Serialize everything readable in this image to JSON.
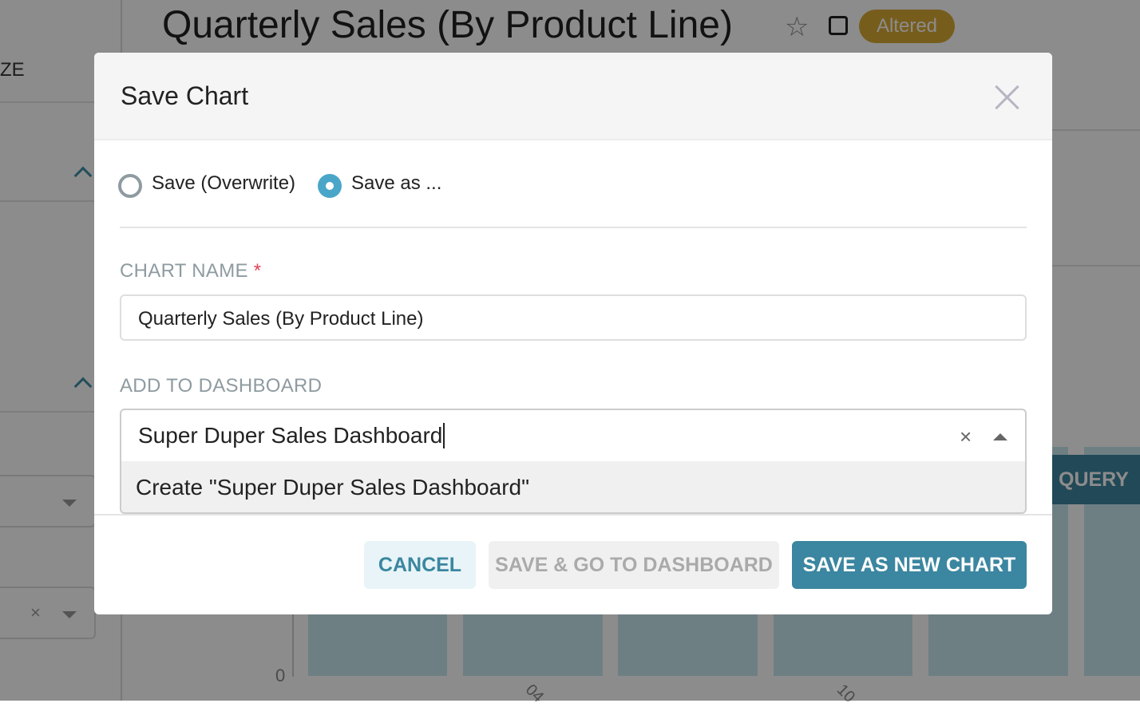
{
  "background": {
    "chart_title": "Quarterly Sales (By Product Line)",
    "status_badge": "Altered",
    "sidebar_partial_label": "ZE",
    "run_query_partial": "QUERY",
    "y_axis_tick": "0",
    "x_axis_ticks": [
      "04",
      "10"
    ],
    "colors": {
      "badge": "#d9a933",
      "run_query": "#3d869f",
      "bars": "#c8e8f0"
    }
  },
  "modal": {
    "title": "Save Chart",
    "radio_options": [
      {
        "label": "Save (Overwrite)",
        "selected": false
      },
      {
        "label": "Save as ...",
        "selected": true
      }
    ],
    "chart_name": {
      "label": "CHART NAME",
      "required_mark": "*",
      "value": "Quarterly Sales (By Product Line)"
    },
    "dashboard": {
      "label": "ADD TO DASHBOARD",
      "value": "Super Duper Sales Dashboard",
      "option": "Create \"Super Duper Sales Dashboard\""
    },
    "buttons": {
      "cancel": "CANCEL",
      "save_go": "SAVE & GO TO DASHBOARD",
      "save_new": "SAVE AS NEW CHART"
    },
    "colors": {
      "primary": "#3b86a0",
      "radio_selected": "#4aa6c8",
      "required": "#e04355"
    }
  }
}
